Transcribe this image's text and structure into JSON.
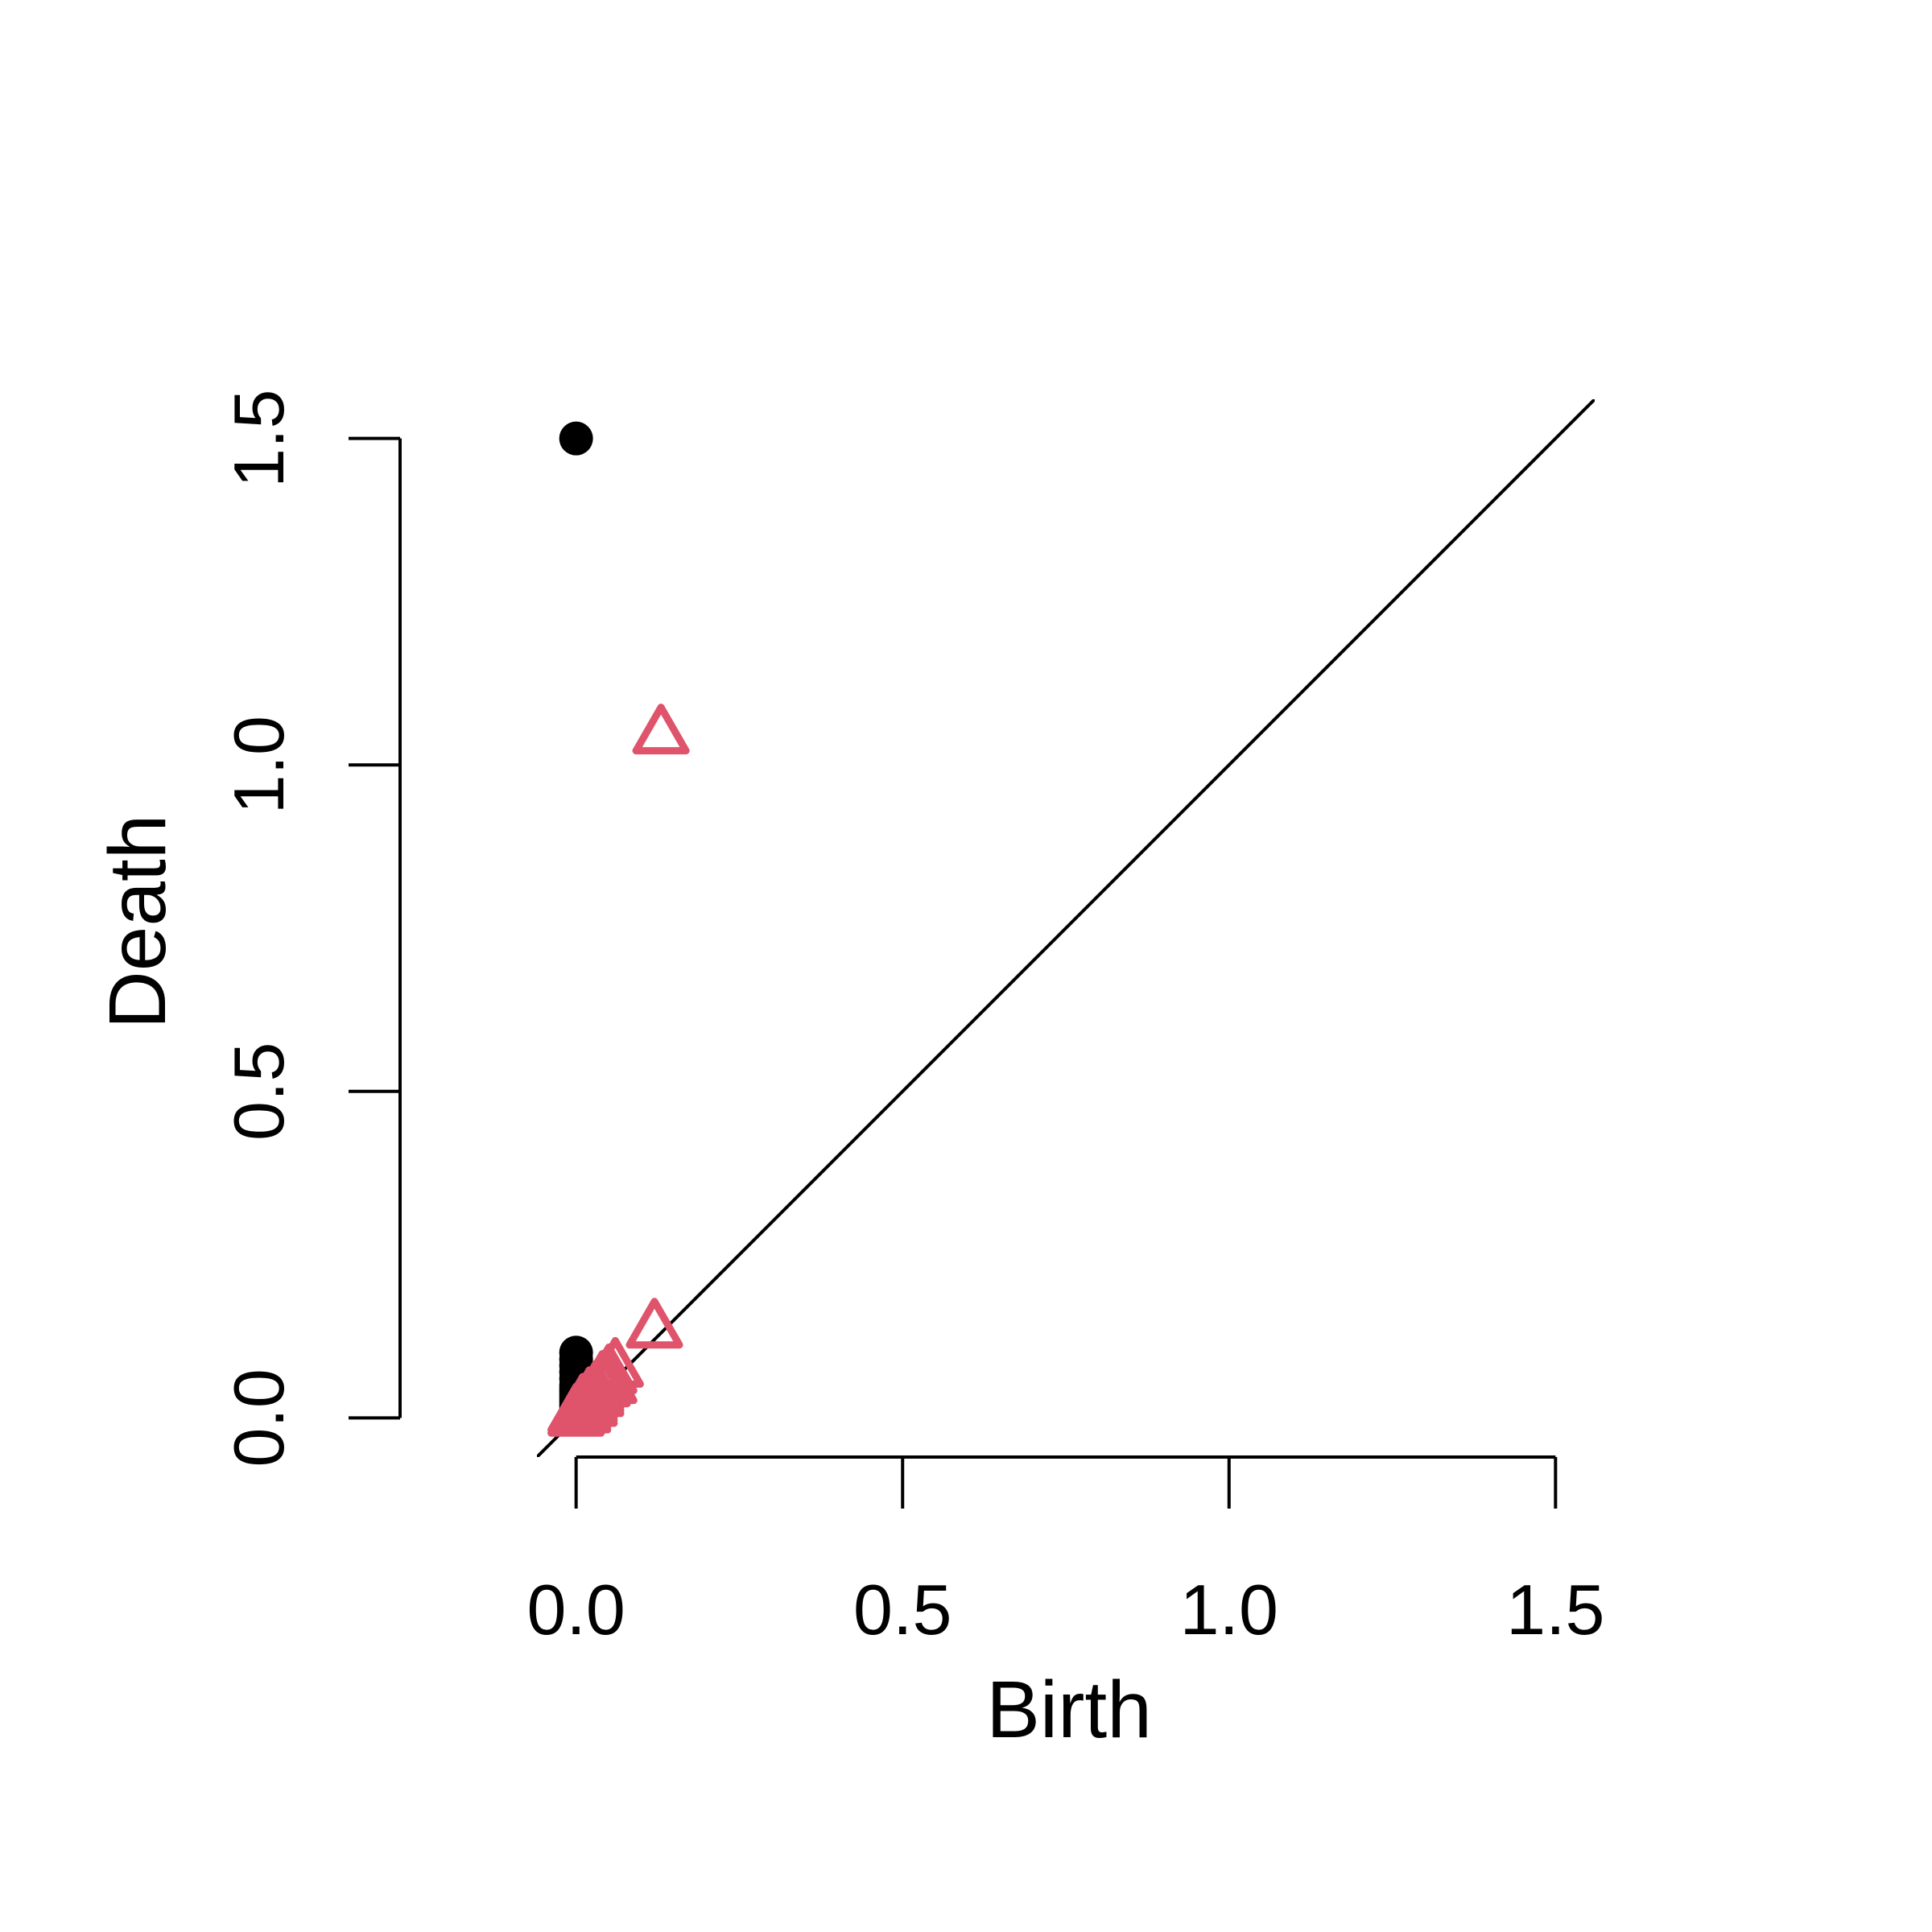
{
  "chart_data": {
    "type": "scatter",
    "title": "",
    "xlabel": "Birth",
    "ylabel": "Death",
    "xlim": [
      -0.06,
      1.56
    ],
    "ylim": [
      -0.06,
      1.56
    ],
    "xticks": [
      0.0,
      0.5,
      1.0,
      1.5
    ],
    "yticks": [
      0.0,
      0.5,
      1.0,
      1.5
    ],
    "xtick_labels": [
      "0.0",
      "0.5",
      "1.0",
      "1.5"
    ],
    "ytick_labels": [
      "0.0",
      "0.5",
      "1.0",
      "1.5"
    ],
    "diagonal": true,
    "grid": false,
    "series": [
      {
        "marker": "filled-circle",
        "color": "#000000",
        "points": [
          [
            0.0,
            1.5
          ],
          [
            0.0,
            0.1
          ],
          [
            0.0,
            0.09
          ],
          [
            0.0,
            0.08
          ],
          [
            0.0,
            0.07
          ],
          [
            0.0,
            0.06
          ],
          [
            0.0,
            0.05
          ],
          [
            0.0,
            0.045
          ],
          [
            0.0,
            0.04
          ],
          [
            0.0,
            0.035
          ],
          [
            0.0,
            0.03
          ],
          [
            0.0,
            0.025
          ],
          [
            0.0,
            0.02
          ],
          [
            0.0,
            0.015
          ],
          [
            0.0,
            0.01
          ],
          [
            0.0,
            0.0
          ]
        ]
      },
      {
        "marker": "open-triangle",
        "color": "#DF536B",
        "points": [
          [
            0.13,
            1.05
          ],
          [
            0.12,
            0.14
          ],
          [
            0.06,
            0.08
          ],
          [
            0.05,
            0.07
          ],
          [
            0.05,
            0.055
          ],
          [
            0.04,
            0.06
          ],
          [
            0.04,
            0.05
          ],
          [
            0.03,
            0.045
          ],
          [
            0.03,
            0.04
          ],
          [
            0.03,
            0.035
          ],
          [
            0.02,
            0.035
          ],
          [
            0.02,
            0.03
          ],
          [
            0.02,
            0.025
          ],
          [
            0.02,
            0.02
          ],
          [
            0.01,
            0.025
          ],
          [
            0.01,
            0.02
          ],
          [
            0.01,
            0.015
          ],
          [
            0.01,
            0.01
          ],
          [
            0.0,
            0.01
          ],
          [
            0.0,
            0.005
          ]
        ]
      }
    ]
  }
}
